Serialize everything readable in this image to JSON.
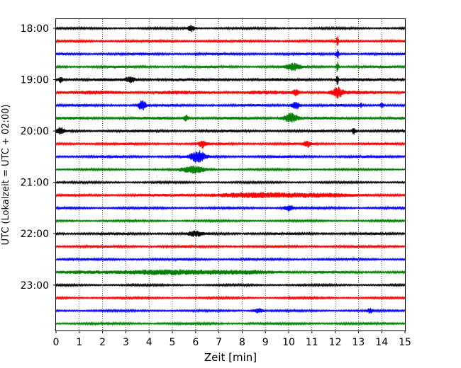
{
  "chart_data": {
    "type": "line",
    "title": "",
    "xlabel": "Zeit  [min]",
    "ylabel": "UTC (Lokalzeit = UTC + 02:00)",
    "xlim": [
      0,
      15
    ],
    "x_ticks": [
      "0",
      "1",
      "2",
      "3",
      "4",
      "5",
      "6",
      "7",
      "8",
      "9",
      "10",
      "11",
      "12",
      "13",
      "14",
      "15"
    ],
    "y_tick_labels": [
      "18:00",
      "19:00",
      "20:00",
      "21:00",
      "22:00",
      "23:00"
    ],
    "trace_start_times": [
      "18:00",
      "18:15",
      "18:30",
      "18:45",
      "19:00",
      "19:15",
      "19:30",
      "19:45",
      "20:00",
      "20:15",
      "20:30",
      "20:45",
      "21:00",
      "21:15",
      "21:30",
      "21:45",
      "22:00",
      "22:15",
      "22:30",
      "22:45",
      "23:00",
      "23:15",
      "23:30",
      "23:45"
    ],
    "colors": [
      "#000000",
      "#ff0000",
      "#0000ff",
      "#008000"
    ],
    "grid": {
      "x": "dotted",
      "y": "none"
    },
    "noise_amplitude": [
      0.5,
      0.6,
      0.6,
      0.6,
      0.7,
      0.9,
      0.6,
      0.7,
      0.6,
      0.6,
      0.6,
      0.5,
      0.5,
      0.6,
      0.55,
      0.5,
      0.6,
      0.6,
      0.55,
      0.6,
      0.5,
      0.5,
      0.5,
      0.55
    ],
    "events": [
      {
        "trace": 0,
        "t": 5.8,
        "amp": 1.5,
        "width": 0.15
      },
      {
        "trace": 1,
        "t": 12.1,
        "amp": 2.0,
        "width": 0.05
      },
      {
        "trace": 2,
        "t": 12.1,
        "amp": 2.5,
        "width": 0.05
      },
      {
        "trace": 3,
        "t": 10.2,
        "amp": 1.3,
        "width": 0.3
      },
      {
        "trace": 3,
        "t": 12.1,
        "amp": 2.5,
        "width": 0.05
      },
      {
        "trace": 4,
        "t": 0.2,
        "amp": 1.2,
        "width": 0.1
      },
      {
        "trace": 4,
        "t": 3.2,
        "amp": 1.2,
        "width": 0.2
      },
      {
        "trace": 4,
        "t": 12.1,
        "amp": 2.5,
        "width": 0.05
      },
      {
        "trace": 5,
        "t": 10.3,
        "amp": 1.5,
        "width": 0.1
      },
      {
        "trace": 5,
        "t": 12.1,
        "amp": 2.0,
        "width": 0.2
      },
      {
        "trace": 6,
        "t": 3.7,
        "amp": 2.5,
        "width": 0.15
      },
      {
        "trace": 6,
        "t": 10.3,
        "amp": 2.0,
        "width": 0.15
      },
      {
        "trace": 6,
        "t": 13.1,
        "amp": 1.2,
        "width": 0.05
      },
      {
        "trace": 6,
        "t": 14.0,
        "amp": 1.1,
        "width": 0.08
      },
      {
        "trace": 7,
        "t": 10.1,
        "amp": 2.0,
        "width": 0.3
      },
      {
        "trace": 7,
        "t": 5.6,
        "amp": 1.3,
        "width": 0.1
      },
      {
        "trace": 8,
        "t": 0.2,
        "amp": 1.3,
        "width": 0.15
      },
      {
        "trace": 8,
        "t": 12.8,
        "amp": 1.3,
        "width": 0.1
      },
      {
        "trace": 9,
        "t": 6.3,
        "amp": 1.6,
        "width": 0.15
      },
      {
        "trace": 9,
        "t": 10.8,
        "amp": 1.3,
        "width": 0.15
      },
      {
        "trace": 10,
        "t": 6.1,
        "amp": 2.5,
        "width": 0.3
      },
      {
        "trace": 11,
        "t": 5.9,
        "amp": 1.5,
        "width": 0.5
      },
      {
        "trace": 13,
        "t": 9.5,
        "amp": 0.9,
        "width": 3.0
      },
      {
        "trace": 14,
        "t": 10.0,
        "amp": 1.2,
        "width": 0.2
      },
      {
        "trace": 16,
        "t": 6.0,
        "amp": 1.0,
        "width": 0.3
      },
      {
        "trace": 19,
        "t": 5.5,
        "amp": 0.8,
        "width": 4.0
      },
      {
        "trace": 22,
        "t": 8.7,
        "amp": 1.0,
        "width": 0.2
      },
      {
        "trace": 22,
        "t": 13.5,
        "amp": 1.0,
        "width": 0.1
      }
    ]
  }
}
